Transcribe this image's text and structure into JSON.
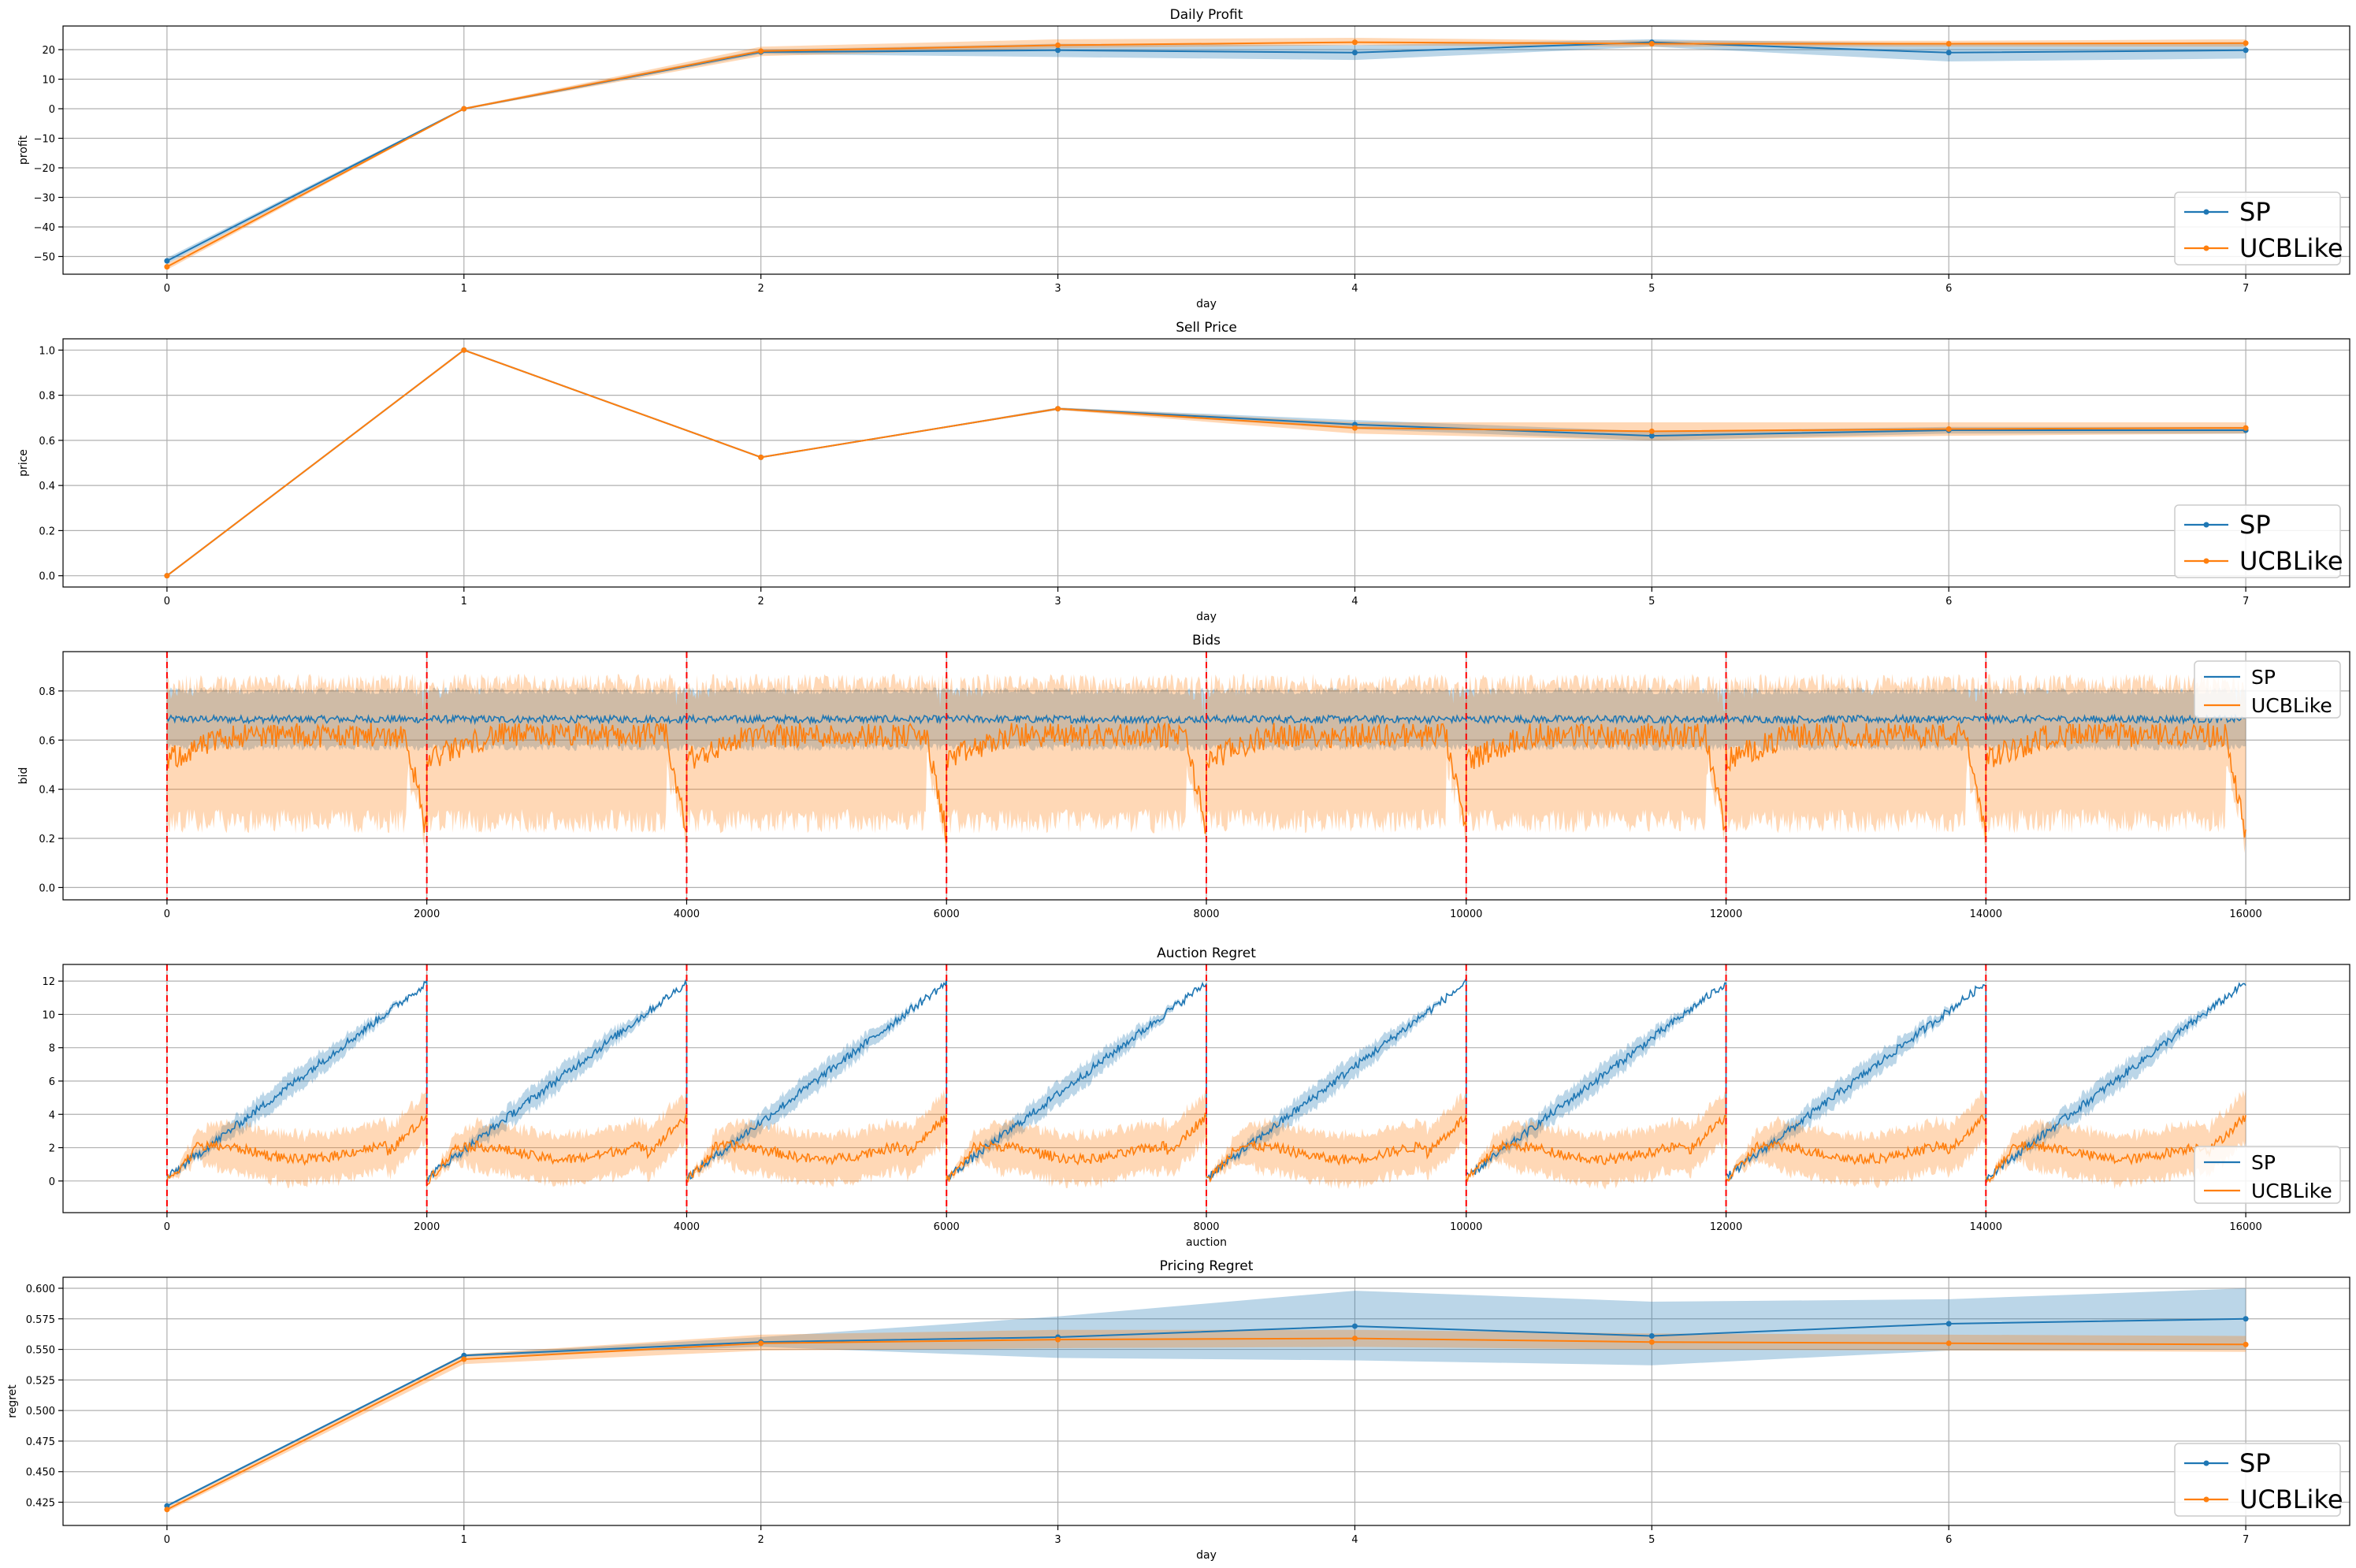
{
  "colors": {
    "SP": "#1f77b4",
    "UCBLike": "#ff7f0e",
    "grid": "#b0b0b0",
    "vline": "#ff0000"
  },
  "chart_data": [
    {
      "type": "line",
      "title": "Daily Profit",
      "xlabel": "day",
      "ylabel": "profit",
      "xlim": [
        -0.35,
        7.35
      ],
      "ylim": [
        -56,
        28
      ],
      "xticks": [
        0,
        1,
        2,
        3,
        4,
        5,
        6,
        7
      ],
      "xtick_labels": [
        "0",
        "1",
        "2",
        "3",
        "4",
        "5",
        "6",
        "7"
      ],
      "yticks": [
        -50,
        -40,
        -30,
        -20,
        -10,
        0,
        10,
        20
      ],
      "ytick_labels": [
        "−50",
        "−40",
        "−30",
        "−20",
        "−10",
        "0",
        "10",
        "20"
      ],
      "grid": true,
      "legend": "lower-right",
      "markers": true,
      "x": [
        0,
        1,
        2,
        3,
        4,
        5,
        6,
        7
      ],
      "series": [
        {
          "name": "SP",
          "values": [
            -51.5,
            0,
            19.2,
            19.8,
            19.0,
            22.5,
            19.0,
            19.8
          ],
          "band_lower": [
            -52.5,
            -0.3,
            18.5,
            17.5,
            16.5,
            21.0,
            16.0,
            17.0
          ],
          "band_upper": [
            -50.5,
            0.3,
            20.0,
            22.0,
            21.5,
            23.5,
            22.0,
            22.5
          ]
        },
        {
          "name": "UCBLike",
          "values": [
            -53.5,
            0,
            19.5,
            21.5,
            22.5,
            22.0,
            22.0,
            22.2
          ],
          "band_lower": [
            -54.5,
            -0.3,
            17.8,
            20.5,
            21.5,
            21.0,
            21.0,
            21.0
          ],
          "band_upper": [
            -52.5,
            0.3,
            21.0,
            23.5,
            24.0,
            23.0,
            23.0,
            23.5
          ]
        }
      ]
    },
    {
      "type": "line",
      "title": "Sell Price",
      "xlabel": "day",
      "ylabel": "price",
      "xlim": [
        -0.35,
        7.35
      ],
      "ylim": [
        -0.05,
        1.05
      ],
      "xticks": [
        0,
        1,
        2,
        3,
        4,
        5,
        6,
        7
      ],
      "xtick_labels": [
        "0",
        "1",
        "2",
        "3",
        "4",
        "5",
        "6",
        "7"
      ],
      "yticks": [
        0.0,
        0.2,
        0.4,
        0.6,
        0.8,
        1.0
      ],
      "ytick_labels": [
        "0.0",
        "0.2",
        "0.4",
        "0.6",
        "0.8",
        "1.0"
      ],
      "grid": true,
      "legend": "lower-right",
      "markers": true,
      "x": [
        0,
        1,
        2,
        3,
        4,
        5,
        6,
        7
      ],
      "series": [
        {
          "name": "SP",
          "values": [
            0.0,
            1.0,
            0.525,
            0.74,
            0.67,
            0.62,
            0.645,
            0.645
          ],
          "band_lower": [
            0.0,
            1.0,
            0.525,
            0.735,
            0.65,
            0.6,
            0.63,
            0.63
          ],
          "band_upper": [
            0.0,
            1.0,
            0.525,
            0.745,
            0.69,
            0.64,
            0.66,
            0.66
          ]
        },
        {
          "name": "UCBLike",
          "values": [
            0.0,
            1.0,
            0.525,
            0.74,
            0.655,
            0.64,
            0.65,
            0.655
          ],
          "band_lower": [
            0.0,
            1.0,
            0.525,
            0.735,
            0.63,
            0.6,
            0.62,
            0.63
          ],
          "band_upper": [
            0.0,
            1.0,
            0.525,
            0.745,
            0.68,
            0.68,
            0.68,
            0.68
          ]
        }
      ]
    },
    {
      "type": "line",
      "title": "Bids",
      "xlabel": "",
      "ylabel": "bid",
      "xlim": [
        -800,
        16800
      ],
      "ylim": [
        -0.05,
        0.96
      ],
      "xticks": [
        0,
        2000,
        4000,
        6000,
        8000,
        10000,
        12000,
        14000,
        16000
      ],
      "xtick_labels": [
        "0",
        "2000",
        "4000",
        "6000",
        "8000",
        "10000",
        "12000",
        "14000",
        "16000"
      ],
      "yticks": [
        0.0,
        0.2,
        0.4,
        0.6,
        0.8
      ],
      "ytick_labels": [
        "0.0",
        "0.2",
        "0.4",
        "0.6",
        "0.8"
      ],
      "grid": true,
      "legend": "upper-right",
      "markers": false,
      "vlines": [
        0,
        2000,
        4000,
        6000,
        8000,
        10000,
        12000,
        14000
      ],
      "period": 2000,
      "periods": 8,
      "series": [
        {
          "name": "SP",
          "mean": 0.685,
          "noise": 0.015,
          "band_halfwidth": 0.115
        },
        {
          "name": "UCBLike",
          "start": 0.52,
          "level": 0.62,
          "noise": 0.05,
          "band_lower": 0.32,
          "band_upper": 0.87,
          "drop_start_fraction": 0.92,
          "drop_end": 0.22
        }
      ]
    },
    {
      "type": "line",
      "title": "Auction Regret",
      "xlabel": "auction",
      "ylabel": "",
      "xlim": [
        -800,
        16800
      ],
      "ylim": [
        -1.9,
        13.0
      ],
      "xticks": [
        0,
        2000,
        4000,
        6000,
        8000,
        10000,
        12000,
        14000,
        16000
      ],
      "xtick_labels": [
        "0",
        "2000",
        "4000",
        "6000",
        "8000",
        "10000",
        "12000",
        "14000",
        "16000"
      ],
      "yticks": [
        0,
        2,
        4,
        6,
        8,
        10,
        12
      ],
      "ytick_labels": [
        "0",
        "2",
        "4",
        "6",
        "8",
        "10",
        "12"
      ],
      "grid": true,
      "legend": "lower-right",
      "markers": false,
      "vlines": [
        0,
        2000,
        4000,
        6000,
        8000,
        10000,
        12000,
        14000
      ],
      "period": 2000,
      "periods": 8,
      "series": [
        {
          "name": "SP",
          "start": 0.2,
          "end": 11.9,
          "noise": 0.25,
          "band_halfwidth": 0.7
        },
        {
          "name": "UCBLike",
          "start": 0.0,
          "level": 1.7,
          "end": 3.9,
          "noise": 0.3,
          "band_halfwidth": 1.6
        }
      ]
    },
    {
      "type": "line",
      "title": "Pricing Regret",
      "xlabel": "day",
      "ylabel": "regret",
      "xlim": [
        -0.35,
        7.35
      ],
      "ylim": [
        0.406,
        0.609
      ],
      "xticks": [
        0,
        1,
        2,
        3,
        4,
        5,
        6,
        7
      ],
      "xtick_labels": [
        "0",
        "1",
        "2",
        "3",
        "4",
        "5",
        "6",
        "7"
      ],
      "yticks": [
        0.425,
        0.45,
        0.475,
        0.5,
        0.525,
        0.55,
        0.575,
        0.6
      ],
      "ytick_labels": [
        "0.425",
        "0.450",
        "0.475",
        "0.500",
        "0.525",
        "0.550",
        "0.575",
        "0.600"
      ],
      "grid": true,
      "legend": "lower-right",
      "markers": true,
      "x": [
        0,
        1,
        2,
        3,
        4,
        5,
        6,
        7
      ],
      "series": [
        {
          "name": "SP",
          "values": [
            0.422,
            0.545,
            0.556,
            0.56,
            0.569,
            0.561,
            0.571,
            0.575
          ],
          "band_lower": [
            0.421,
            0.544,
            0.552,
            0.543,
            0.541,
            0.537,
            0.549,
            0.55
          ],
          "band_upper": [
            0.423,
            0.546,
            0.56,
            0.577,
            0.598,
            0.589,
            0.591,
            0.6
          ]
        },
        {
          "name": "UCBLike",
          "values": [
            0.419,
            0.542,
            0.555,
            0.558,
            0.559,
            0.556,
            0.555,
            0.554
          ],
          "band_lower": [
            0.417,
            0.538,
            0.549,
            0.551,
            0.552,
            0.55,
            0.549,
            0.548
          ],
          "band_upper": [
            0.421,
            0.546,
            0.562,
            0.566,
            0.566,
            0.563,
            0.562,
            0.561
          ]
        }
      ]
    }
  ]
}
